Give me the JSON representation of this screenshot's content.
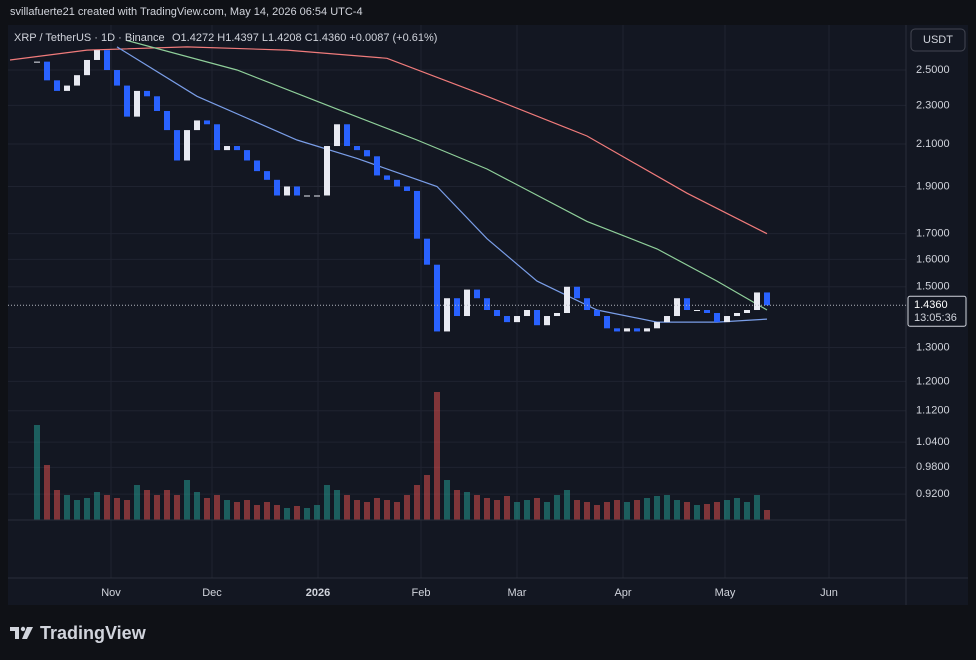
{
  "chart_data": {
    "type": "candlestick",
    "header": "svillafuerte21 created with TradingView.com, May 14, 2026 06:54 UTC-4",
    "symbol": "XRP / TetherUS · 1D · Binance",
    "ohlc_legend": "O1.4272 H1.4397 L1.4208 C1.4360 +0.0087 (+0.61%)",
    "currency_button": "USDT",
    "brand": "TradingView",
    "values": [
      2.55,
      2.44,
      2.38,
      2.41,
      2.47,
      2.56,
      2.62,
      2.5,
      2.41,
      2.24,
      2.38,
      2.35,
      2.27,
      2.17,
      2.02,
      2.17,
      2.22,
      2.2,
      2.07,
      2.09,
      2.07,
      2.02,
      1.97,
      1.93,
      1.86,
      1.9,
      1.86,
      1.86,
      1.86,
      2.09,
      2.2,
      2.09,
      2.07,
      2.04,
      1.95,
      1.93,
      1.9,
      1.88,
      1.68,
      1.58,
      1.35,
      1.46,
      1.4,
      1.49,
      1.46,
      1.42,
      1.4,
      1.38,
      1.4,
      1.42,
      1.37,
      1.4,
      1.41,
      1.5,
      1.46,
      1.42,
      1.4,
      1.36,
      1.35,
      1.36,
      1.35,
      1.36,
      1.38,
      1.4,
      1.46,
      1.42,
      1.42,
      1.41,
      1.38,
      1.4,
      1.41,
      1.42,
      1.48,
      1.436
    ],
    "up_color": "#e8eaf2",
    "down_color": "#2962ff",
    "volume": [
      95,
      55,
      30,
      25,
      20,
      22,
      28,
      25,
      22,
      20,
      35,
      30,
      25,
      30,
      25,
      40,
      28,
      22,
      25,
      20,
      18,
      20,
      15,
      18,
      15,
      12,
      14,
      12,
      15,
      35,
      30,
      25,
      20,
      18,
      22,
      20,
      18,
      25,
      35,
      45,
      128,
      40,
      30,
      28,
      25,
      22,
      20,
      24,
      18,
      20,
      22,
      18,
      25,
      30,
      20,
      18,
      15,
      18,
      20,
      18,
      20,
      22,
      24,
      25,
      20,
      18,
      15,
      16,
      18,
      20,
      22,
      18,
      25,
      10
    ],
    "vlim": [
      0,
      130
    ],
    "volume_up_color": "#26a69a",
    "volume_down_color": "#ef5350",
    "moving_averages": [
      {
        "color": "#f07b7b",
        "x": [
          -2.7,
          5,
          15,
          25,
          35,
          45,
          55,
          65,
          73
        ],
        "values": [
          2.56,
          2.62,
          2.64,
          2.62,
          2.57,
          2.35,
          2.14,
          1.87,
          1.7
        ]
      },
      {
        "color": "#8fcf9a",
        "x": [
          9,
          20,
          30,
          38,
          45,
          55,
          62,
          68,
          73
        ],
        "values": [
          2.68,
          2.5,
          2.28,
          2.12,
          1.98,
          1.75,
          1.64,
          1.52,
          1.42
        ]
      },
      {
        "color": "#7a9ee8",
        "x": [
          8,
          16,
          26,
          32,
          40,
          45,
          50,
          56,
          62,
          68,
          73
        ],
        "values": [
          2.64,
          2.35,
          2.12,
          2.03,
          1.9,
          1.68,
          1.52,
          1.42,
          1.38,
          1.38,
          1.39
        ]
      }
    ],
    "log": true,
    "grid": true,
    "ylim": [
      0.755,
      2.78
    ],
    "yticks": [
      {
        "value": 2.5,
        "label": "2.5000"
      },
      {
        "value": 2.3,
        "label": "2.3000"
      },
      {
        "value": 2.1,
        "label": "2.1000"
      },
      {
        "value": 1.9,
        "label": "1.9000"
      },
      {
        "value": 1.7,
        "label": "1.7000"
      },
      {
        "value": 1.6,
        "label": "1.6000"
      },
      {
        "value": 1.5,
        "label": "1.5000"
      },
      {
        "value": 1.3,
        "label": "1.3000"
      },
      {
        "value": 1.2,
        "label": "1.2000"
      },
      {
        "value": 1.12,
        "label": "1.1200"
      },
      {
        "value": 1.04,
        "label": "1.0400"
      },
      {
        "value": 0.98,
        "label": "0.9800"
      },
      {
        "value": 0.92,
        "label": "0.9200"
      }
    ],
    "xlim": [
      -2.9,
      86.9
    ],
    "xticks": [
      {
        "value": 7.4,
        "label": "Nov"
      },
      {
        "value": 17.5,
        "label": "Dec"
      },
      {
        "value": 28.1,
        "label": "2026"
      },
      {
        "value": 38.4,
        "label": "Feb"
      },
      {
        "value": 48,
        "label": "Mar"
      },
      {
        "value": 58.6,
        "label": "Apr"
      },
      {
        "value": 68.8,
        "label": "May"
      },
      {
        "value": 79.2,
        "label": "Jun"
      }
    ],
    "last_price": {
      "value": 1.436,
      "label": "1.4360"
    },
    "countdown": "13:05:36"
  }
}
